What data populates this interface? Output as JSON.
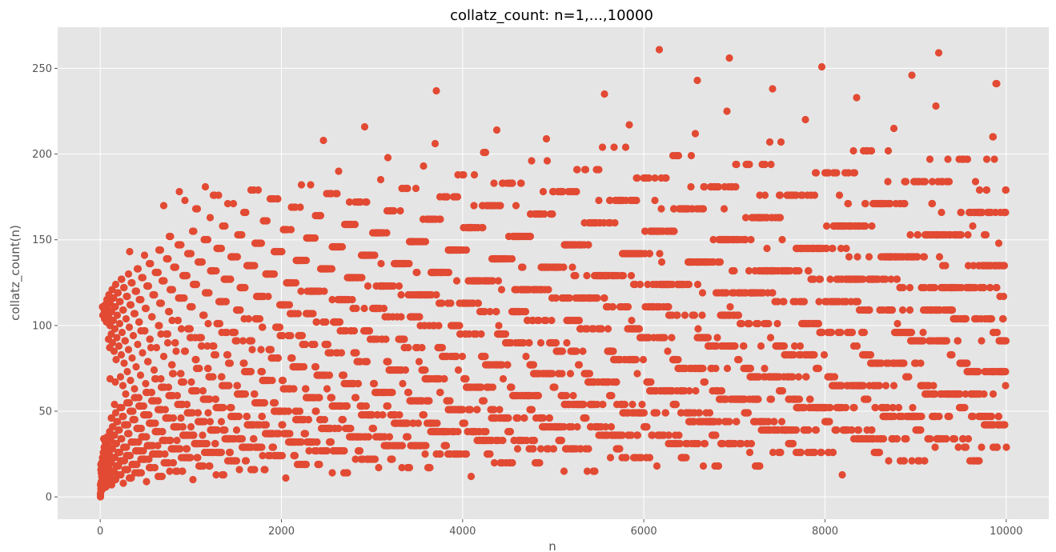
{
  "chart_data": {
    "type": "scatter",
    "title": "collatz_count: n=1,...,10000",
    "xlabel": "n",
    "ylabel": "collatz_count(n)",
    "xlim": [
      -470,
      10470
    ],
    "ylim": [
      -13,
      274
    ],
    "x_ticks": [
      0,
      2000,
      4000,
      6000,
      8000,
      10000
    ],
    "y_ticks": [
      0,
      50,
      100,
      150,
      200,
      250
    ],
    "x_tick_labels": [
      "0",
      "2000",
      "4000",
      "6000",
      "8000",
      "10000"
    ],
    "y_tick_labels": [
      "0",
      "50",
      "100",
      "150",
      "200",
      "250"
    ],
    "grid": true,
    "legend": "none",
    "marker_color": "#E24A33",
    "background_color": "#E5E5E5",
    "grid_color": "#FFFFFF",
    "series": [
      {
        "function": "collatz_count",
        "x_start": 1,
        "x_end": 10000,
        "outliers": [
          {
            "x": 6171,
            "y": 261
          },
          {
            "x": 9257,
            "y": 259
          },
          {
            "x": 6943,
            "y": 256
          },
          {
            "x": 7963,
            "y": 251
          },
          {
            "x": 8959,
            "y": 246
          },
          {
            "x": 6591,
            "y": 243
          },
          {
            "x": 9887,
            "y": 241
          },
          {
            "x": 7423,
            "y": 238
          },
          {
            "x": 3711,
            "y": 237
          },
          {
            "x": 5567,
            "y": 235
          },
          {
            "x": 8351,
            "y": 233
          }
        ]
      }
    ]
  }
}
